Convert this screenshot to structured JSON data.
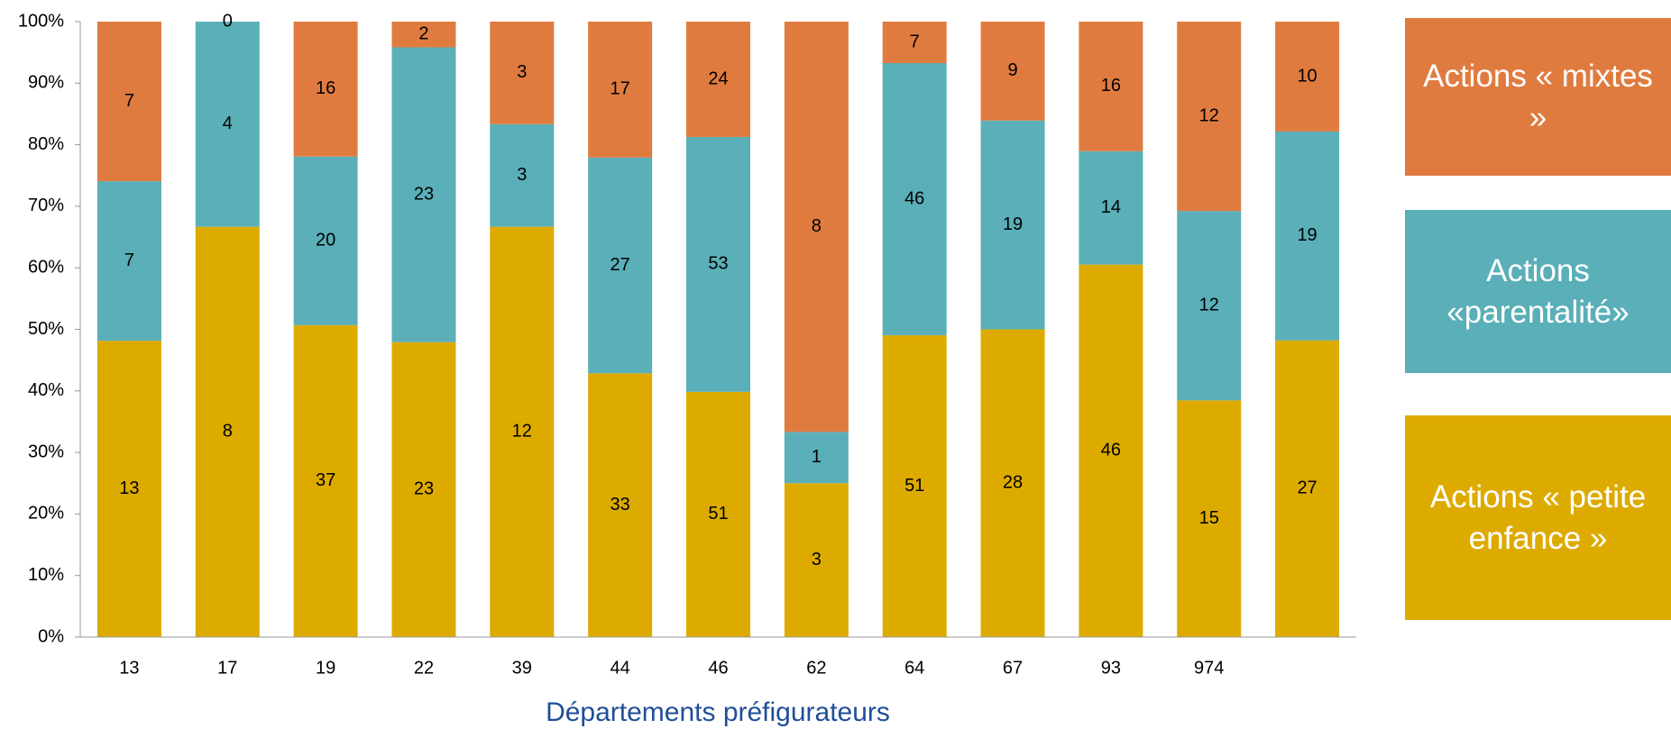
{
  "chart_data": {
    "type": "bar",
    "stacked": true,
    "normalize": true,
    "x_label": "Départements préfigurateurs",
    "categories": [
      "13",
      "17",
      "19",
      "22",
      "39",
      "44",
      "46",
      "62",
      "64",
      "67",
      "93",
      "974",
      null
    ],
    "series": [
      {
        "name": "Actions « petite enfance »",
        "color": "#DDAB00",
        "values": [
          13,
          8,
          37,
          23,
          12,
          33,
          51,
          3,
          51,
          28,
          46,
          15,
          27
        ]
      },
      {
        "name": "Actions «parentalité»",
        "color": "#5AAFB8",
        "values": [
          7,
          4,
          20,
          23,
          3,
          27,
          53,
          1,
          46,
          19,
          14,
          12,
          19
        ]
      },
      {
        "name": "Actions « mixtes »",
        "color": "#E07B3F",
        "values": [
          7,
          0,
          16,
          2,
          3,
          17,
          24,
          8,
          7,
          9,
          16,
          12,
          10
        ]
      }
    ],
    "ylim": [
      0,
      100
    ],
    "yticks": [
      {
        "value": 0,
        "label": "0%"
      },
      {
        "value": 10,
        "label": "10%"
      },
      {
        "value": 20,
        "label": "20%"
      },
      {
        "value": 30,
        "label": "30%"
      },
      {
        "value": 40,
        "label": "40%"
      },
      {
        "value": 50,
        "label": "50%"
      },
      {
        "value": 60,
        "label": "60%"
      },
      {
        "value": 70,
        "label": "70%"
      },
      {
        "value": 80,
        "label": "80%"
      },
      {
        "value": 90,
        "label": "90%"
      },
      {
        "value": 100,
        "label": "100%"
      }
    ],
    "grid": false
  }
}
